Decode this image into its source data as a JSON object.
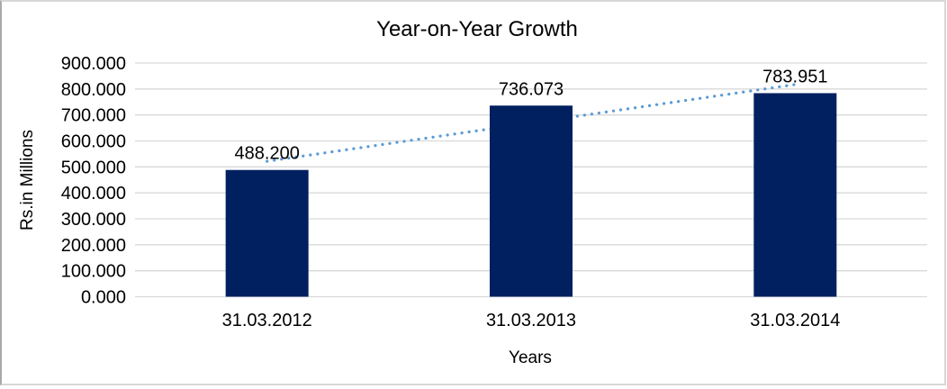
{
  "frame": {
    "background": "#ffffff",
    "border_color": "#d7d7d7",
    "left_border_color": "#a9a9a9"
  },
  "chart_data": {
    "type": "bar",
    "title": "Year-on-Year Growth",
    "xlabel": "Years",
    "ylabel": "Rs.in Millions",
    "categories": [
      "31.03.2012",
      "31.03.2013",
      "31.03.2014"
    ],
    "values": [
      488.2,
      736.073,
      783.951
    ],
    "data_labels": [
      "488.200",
      "736.073",
      "783.951"
    ],
    "ylim": [
      0,
      900
    ],
    "ytick_step": 100,
    "ytick_labels": [
      "0.000",
      "100.000",
      "200.000",
      "300.000",
      "400.000",
      "500.000",
      "600.000",
      "700.000",
      "800.000",
      "900.000"
    ],
    "grid": true,
    "legend": "none",
    "bar_color": "#002060",
    "gridline_color": "#d9d9d9",
    "trendline": {
      "type": "linear",
      "style": "dotted",
      "color": "#5b9bd5"
    },
    "text_color": "#000000"
  }
}
